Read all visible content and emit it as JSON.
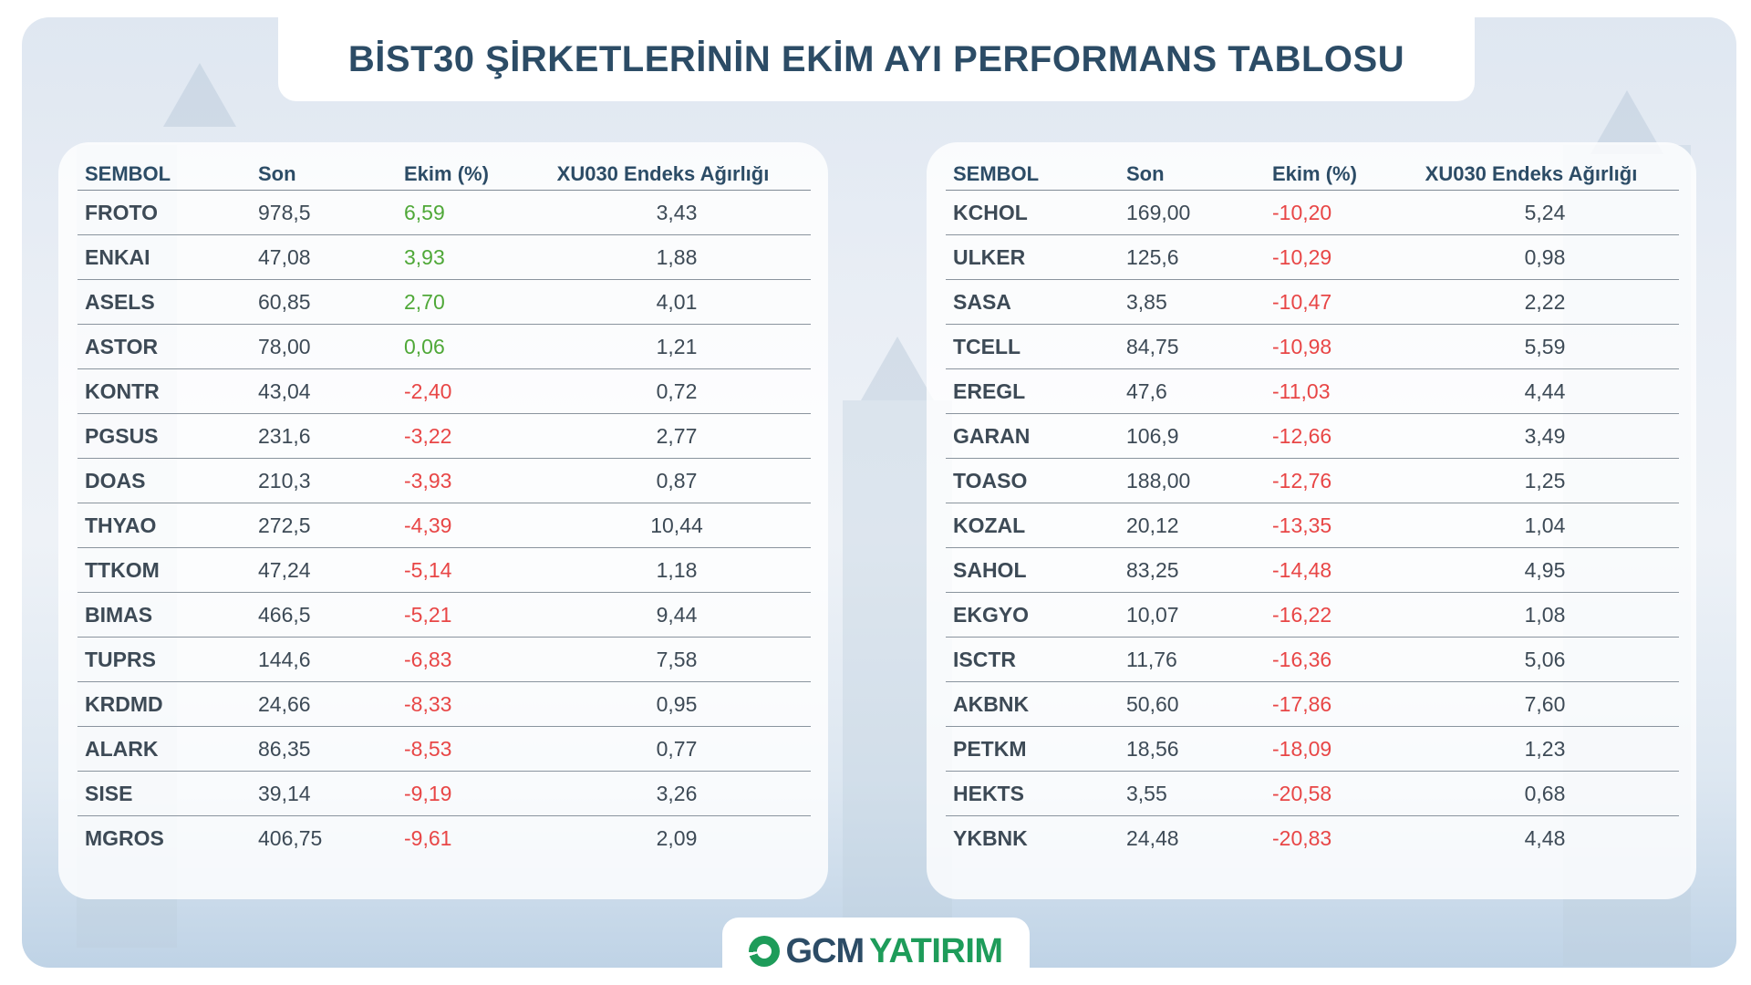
{
  "title": "BİST30 ŞİRKETLERİNİN EKİM AYI PERFORMANS TABLOSU",
  "colors": {
    "positive": "#4fa838",
    "negative": "#e84646",
    "heading": "#2c4c66",
    "brand_green": "#1e9c5a"
  },
  "columns": {
    "symbol": "SEMBOL",
    "last": "Son",
    "october": "Ekim (%)",
    "weight": "XU030 Endeks Ağırlığı"
  },
  "left_table": [
    {
      "symbol": "FROTO",
      "last": "978,5",
      "october": "6,59",
      "weight": "3,43",
      "sign": "pos"
    },
    {
      "symbol": "ENKAI",
      "last": "47,08",
      "october": "3,93",
      "weight": "1,88",
      "sign": "pos"
    },
    {
      "symbol": "ASELS",
      "last": "60,85",
      "october": "2,70",
      "weight": "4,01",
      "sign": "pos"
    },
    {
      "symbol": "ASTOR",
      "last": "78,00",
      "october": "0,06",
      "weight": "1,21",
      "sign": "pos"
    },
    {
      "symbol": "KONTR",
      "last": "43,04",
      "october": "-2,40",
      "weight": "0,72",
      "sign": "neg"
    },
    {
      "symbol": "PGSUS",
      "last": "231,6",
      "october": "-3,22",
      "weight": "2,77",
      "sign": "neg"
    },
    {
      "symbol": "DOAS",
      "last": "210,3",
      "october": "-3,93",
      "weight": "0,87",
      "sign": "neg"
    },
    {
      "symbol": "THYAO",
      "last": "272,5",
      "october": "-4,39",
      "weight": "10,44",
      "sign": "neg"
    },
    {
      "symbol": "TTKOM",
      "last": "47,24",
      "october": "-5,14",
      "weight": "1,18",
      "sign": "neg"
    },
    {
      "symbol": "BIMAS",
      "last": "466,5",
      "october": "-5,21",
      "weight": "9,44",
      "sign": "neg"
    },
    {
      "symbol": "TUPRS",
      "last": "144,6",
      "october": "-6,83",
      "weight": "7,58",
      "sign": "neg"
    },
    {
      "symbol": "KRDMD",
      "last": "24,66",
      "october": "-8,33",
      "weight": "0,95",
      "sign": "neg"
    },
    {
      "symbol": "ALARK",
      "last": "86,35",
      "october": "-8,53",
      "weight": "0,77",
      "sign": "neg"
    },
    {
      "symbol": "SISE",
      "last": "39,14",
      "october": "-9,19",
      "weight": "3,26",
      "sign": "neg"
    },
    {
      "symbol": "MGROS",
      "last": "406,75",
      "october": "-9,61",
      "weight": "2,09",
      "sign": "neg"
    }
  ],
  "right_table": [
    {
      "symbol": "KCHOL",
      "last": "169,00",
      "october": "-10,20",
      "weight": "5,24",
      "sign": "neg"
    },
    {
      "symbol": "ULKER",
      "last": "125,6",
      "october": "-10,29",
      "weight": "0,98",
      "sign": "neg"
    },
    {
      "symbol": "SASA",
      "last": "3,85",
      "october": "-10,47",
      "weight": "2,22",
      "sign": "neg"
    },
    {
      "symbol": "TCELL",
      "last": "84,75",
      "october": "-10,98",
      "weight": "5,59",
      "sign": "neg"
    },
    {
      "symbol": "EREGL",
      "last": "47,6",
      "october": "-11,03",
      "weight": "4,44",
      "sign": "neg"
    },
    {
      "symbol": "GARAN",
      "last": "106,9",
      "october": "-12,66",
      "weight": "3,49",
      "sign": "neg"
    },
    {
      "symbol": "TOASO",
      "last": "188,00",
      "october": "-12,76",
      "weight": "1,25",
      "sign": "neg"
    },
    {
      "symbol": "KOZAL",
      "last": "20,12",
      "october": "-13,35",
      "weight": "1,04",
      "sign": "neg"
    },
    {
      "symbol": "SAHOL",
      "last": "83,25",
      "october": "-14,48",
      "weight": "4,95",
      "sign": "neg"
    },
    {
      "symbol": "EKGYO",
      "last": "10,07",
      "october": "-16,22",
      "weight": "1,08",
      "sign": "neg"
    },
    {
      "symbol": "ISCTR",
      "last": "11,76",
      "october": "-16,36",
      "weight": "5,06",
      "sign": "neg"
    },
    {
      "symbol": "AKBNK",
      "last": "50,60",
      "october": "-17,86",
      "weight": "7,60",
      "sign": "neg"
    },
    {
      "symbol": "PETKM",
      "last": "18,56",
      "october": "-18,09",
      "weight": "1,23",
      "sign": "neg"
    },
    {
      "symbol": "HEKTS",
      "last": "3,55",
      "october": "-20,58",
      "weight": "0,68",
      "sign": "neg"
    },
    {
      "symbol": "YKBNK",
      "last": "24,48",
      "october": "-20,83",
      "weight": "4,48",
      "sign": "neg"
    }
  ],
  "logo": {
    "part1": "GCM",
    "part2": "YATIRIM",
    "icon": "globe-swoosh-icon"
  }
}
